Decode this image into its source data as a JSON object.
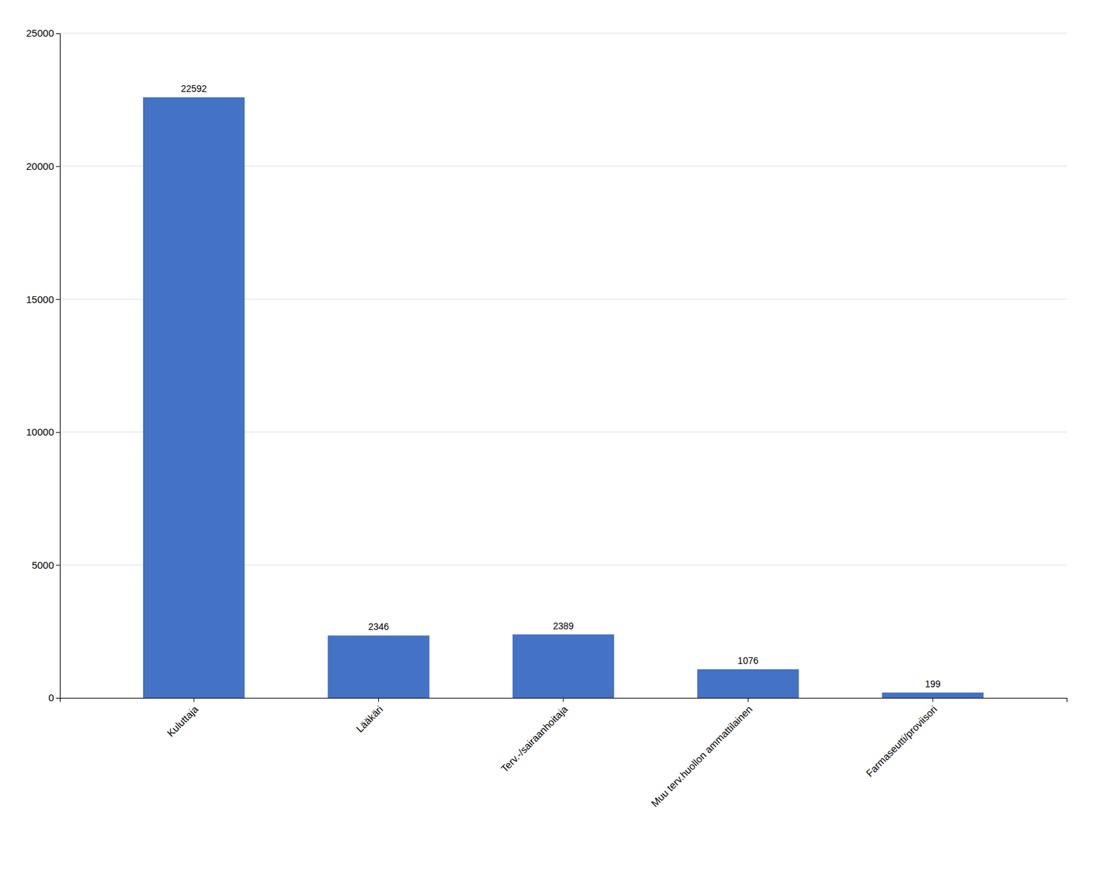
{
  "chart_data": {
    "type": "bar",
    "categories": [
      "Kuluttaja",
      "Lääkäri",
      "Terv.-/sairaanhoitaja",
      "Muu terv.huollon ammattilainen",
      "Farmaseutti/proviisori"
    ],
    "values": [
      22592,
      2346,
      2389,
      1076,
      199
    ],
    "color": "#4472C4",
    "ylim": [
      0,
      25000
    ],
    "yticks": [
      0,
      5000,
      10000,
      15000,
      20000,
      25000
    ],
    "grid": true,
    "data_labels": true
  }
}
